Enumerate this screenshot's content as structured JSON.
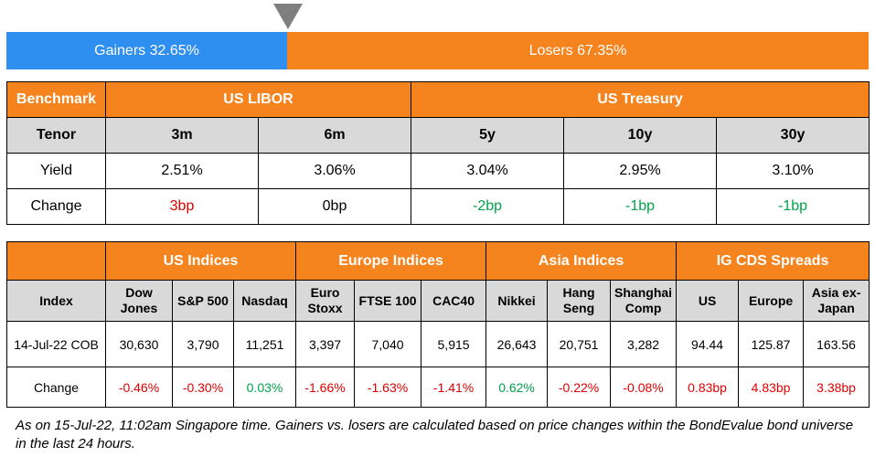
{
  "split_bar": {
    "gainers_label": "Gainers 32.65%",
    "losers_label": "Losers 67.35%",
    "gainers_fraction": 0.3265,
    "colors": {
      "gainers": "#2e8ff0",
      "losers": "#f5841f",
      "marker": "#7f7f7f"
    }
  },
  "rates_table": {
    "header": {
      "benchmark": "Benchmark",
      "us_libor": "US LIBOR",
      "us_treasury": "US Treasury"
    },
    "tenor_label": "Tenor",
    "tenors": [
      "3m",
      "6m",
      "5y",
      "10y",
      "30y"
    ],
    "yield_label": "Yield",
    "yields": [
      "2.51%",
      "3.06%",
      "3.04%",
      "2.95%",
      "3.10%"
    ],
    "change_label": "Change",
    "changes": [
      "3bp",
      "0bp",
      "-2bp",
      "-1bp",
      "-1bp"
    ]
  },
  "indices_table": {
    "groups": {
      "us": "US Indices",
      "europe": "Europe Indices",
      "asia": "Asia Indices",
      "cds": "IG CDS Spreads"
    },
    "index_label": "Index",
    "names": [
      [
        "Dow",
        "Jones"
      ],
      [
        "S&P 500"
      ],
      [
        "Nasdaq"
      ],
      [
        "Euro",
        "Stoxx"
      ],
      [
        "FTSE 100"
      ],
      [
        "CAC40"
      ],
      [
        "Nikkei"
      ],
      [
        "Hang",
        "Seng"
      ],
      [
        "Shanghai",
        "Comp"
      ],
      [
        "US"
      ],
      [
        "Europe"
      ],
      [
        "Asia ex-",
        "Japan"
      ]
    ],
    "date_label": "14-Jul-22 COB",
    "values": [
      "30,630",
      "3,790",
      "11,251",
      "3,397",
      "7,040",
      "5,915",
      "26,643",
      "20,751",
      "3,282",
      "94.44",
      "125.87",
      "163.56"
    ],
    "change_label": "Change",
    "changes": [
      "-0.46%",
      "-0.30%",
      "0.03%",
      "-1.66%",
      "-1.63%",
      "-1.41%",
      "0.62%",
      "-0.22%",
      "-0.08%",
      "0.83bp",
      "4.83bp",
      "3.38bp"
    ]
  },
  "colors": {
    "header_orange": "#f5841f",
    "header_gray": "#d9d9d9",
    "negative": "#e00000",
    "positive": "#00a24a"
  },
  "footnote": "As on 15-Jul-22, 11:02am Singapore time. Gainers vs. losers are calculated based on price changes within the BondEvalue bond universe in the last 24 hours."
}
